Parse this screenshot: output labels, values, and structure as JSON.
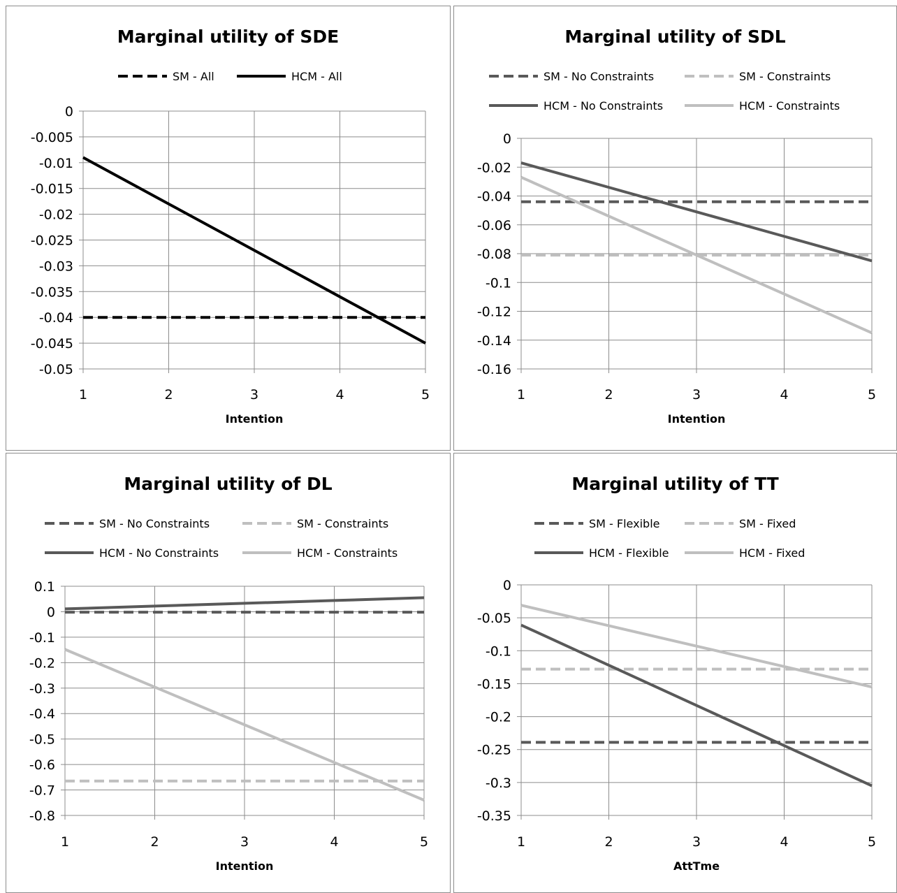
{
  "chart_data": [
    {
      "type": "line",
      "title": "Marginal utility of SDE",
      "xlabel": "Intention",
      "ylabel": "",
      "x": [
        1,
        2,
        3,
        4,
        5
      ],
      "xlim": [
        1,
        5
      ],
      "ylim": [
        -0.05,
        0
      ],
      "yticks": [
        "0",
        "-0.005",
        "-0.01",
        "-0.015",
        "-0.02",
        "-0.025",
        "-0.03",
        "-0.035",
        "-0.04",
        "-0.045",
        "-0.05"
      ],
      "xticks": [
        "1",
        "2",
        "3",
        "4",
        "5"
      ],
      "grid": true,
      "legend_position": "top",
      "series": [
        {
          "name": "SM - All",
          "values": [
            -0.04,
            -0.04,
            -0.04,
            -0.04,
            -0.04
          ],
          "color": "#000000",
          "dash": true
        },
        {
          "name": "HCM - All",
          "values": [
            -0.009,
            -0.018,
            -0.027,
            -0.036,
            -0.045
          ],
          "color": "#000000",
          "dash": false
        }
      ]
    },
    {
      "type": "line",
      "title": "Marginal utility of SDL",
      "xlabel": "Intention",
      "ylabel": "",
      "x": [
        1,
        2,
        3,
        4,
        5
      ],
      "xlim": [
        1,
        5
      ],
      "ylim": [
        -0.16,
        0
      ],
      "yticks": [
        "0",
        "-0.02",
        "-0.04",
        "-0.06",
        "-0.08",
        "-0.1",
        "-0.12",
        "-0.14",
        "-0.16"
      ],
      "xticks": [
        "1",
        "2",
        "3",
        "4",
        "5"
      ],
      "grid": true,
      "legend_position": "top",
      "series": [
        {
          "name": "SM - No Constraints",
          "values": [
            -0.044,
            -0.044,
            -0.044,
            -0.044,
            -0.044
          ],
          "color": "#595959",
          "dash": true
        },
        {
          "name": "SM - Constraints",
          "values": [
            -0.081,
            -0.081,
            -0.081,
            -0.081,
            -0.081
          ],
          "color": "#bfbfbf",
          "dash": true
        },
        {
          "name": "HCM - No Constraints",
          "values": [
            -0.017,
            -0.034,
            -0.051,
            -0.068,
            -0.085
          ],
          "color": "#595959",
          "dash": false
        },
        {
          "name": "HCM - Constraints",
          "values": [
            -0.027,
            -0.054,
            -0.081,
            -0.108,
            -0.135
          ],
          "color": "#bfbfbf",
          "dash": false
        }
      ]
    },
    {
      "type": "line",
      "title": "Marginal utility of DL",
      "xlabel": "Intention",
      "ylabel": "",
      "x": [
        1,
        2,
        3,
        4,
        5
      ],
      "xlim": [
        1,
        5
      ],
      "ylim": [
        -0.8,
        0.1
      ],
      "yticks": [
        "0.1",
        "0",
        "-0.1",
        "-0.2",
        "-0.3",
        "-0.4",
        "-0.5",
        "-0.6",
        "-0.7",
        "-0.8"
      ],
      "xticks": [
        "1",
        "2",
        "3",
        "4",
        "5"
      ],
      "grid": true,
      "legend_position": "top",
      "series": [
        {
          "name": "SM - No Constraints",
          "values": [
            -0.002,
            -0.002,
            -0.002,
            -0.002,
            -0.002
          ],
          "color": "#595959",
          "dash": true
        },
        {
          "name": "SM - Constraints",
          "values": [
            -0.665,
            -0.665,
            -0.665,
            -0.665,
            -0.665
          ],
          "color": "#bfbfbf",
          "dash": true
        },
        {
          "name": "HCM - No Constraints",
          "values": [
            0.011,
            0.022,
            0.033,
            0.044,
            0.055
          ],
          "color": "#595959",
          "dash": false
        },
        {
          "name": "HCM - Constraints",
          "values": [
            -0.148,
            -0.296,
            -0.444,
            -0.592,
            -0.74
          ],
          "color": "#bfbfbf",
          "dash": false
        }
      ]
    },
    {
      "type": "line",
      "title": "Marginal utility of TT",
      "xlabel": "AttTme",
      "ylabel": "",
      "x": [
        1,
        2,
        3,
        4,
        5
      ],
      "xlim": [
        1,
        5
      ],
      "ylim": [
        -0.35,
        0
      ],
      "yticks": [
        "0",
        "-0.05",
        "-0.1",
        "-0.15",
        "-0.2",
        "-0.25",
        "-0.3",
        "-0.35"
      ],
      "xticks": [
        "1",
        "2",
        "3",
        "4",
        "5"
      ],
      "grid": true,
      "legend_position": "top",
      "series": [
        {
          "name": "SM - Flexible",
          "values": [
            -0.239,
            -0.239,
            -0.239,
            -0.239,
            -0.239
          ],
          "color": "#595959",
          "dash": true
        },
        {
          "name": "SM - Fixed",
          "values": [
            -0.128,
            -0.128,
            -0.128,
            -0.128,
            -0.128
          ],
          "color": "#bfbfbf",
          "dash": true
        },
        {
          "name": "HCM - Flexible",
          "values": [
            -0.061,
            -0.122,
            -0.183,
            -0.244,
            -0.305
          ],
          "color": "#595959",
          "dash": false
        },
        {
          "name": "HCM - Fixed",
          "values": [
            -0.031,
            -0.062,
            -0.093,
            -0.124,
            -0.155
          ],
          "color": "#bfbfbf",
          "dash": false
        }
      ]
    }
  ]
}
